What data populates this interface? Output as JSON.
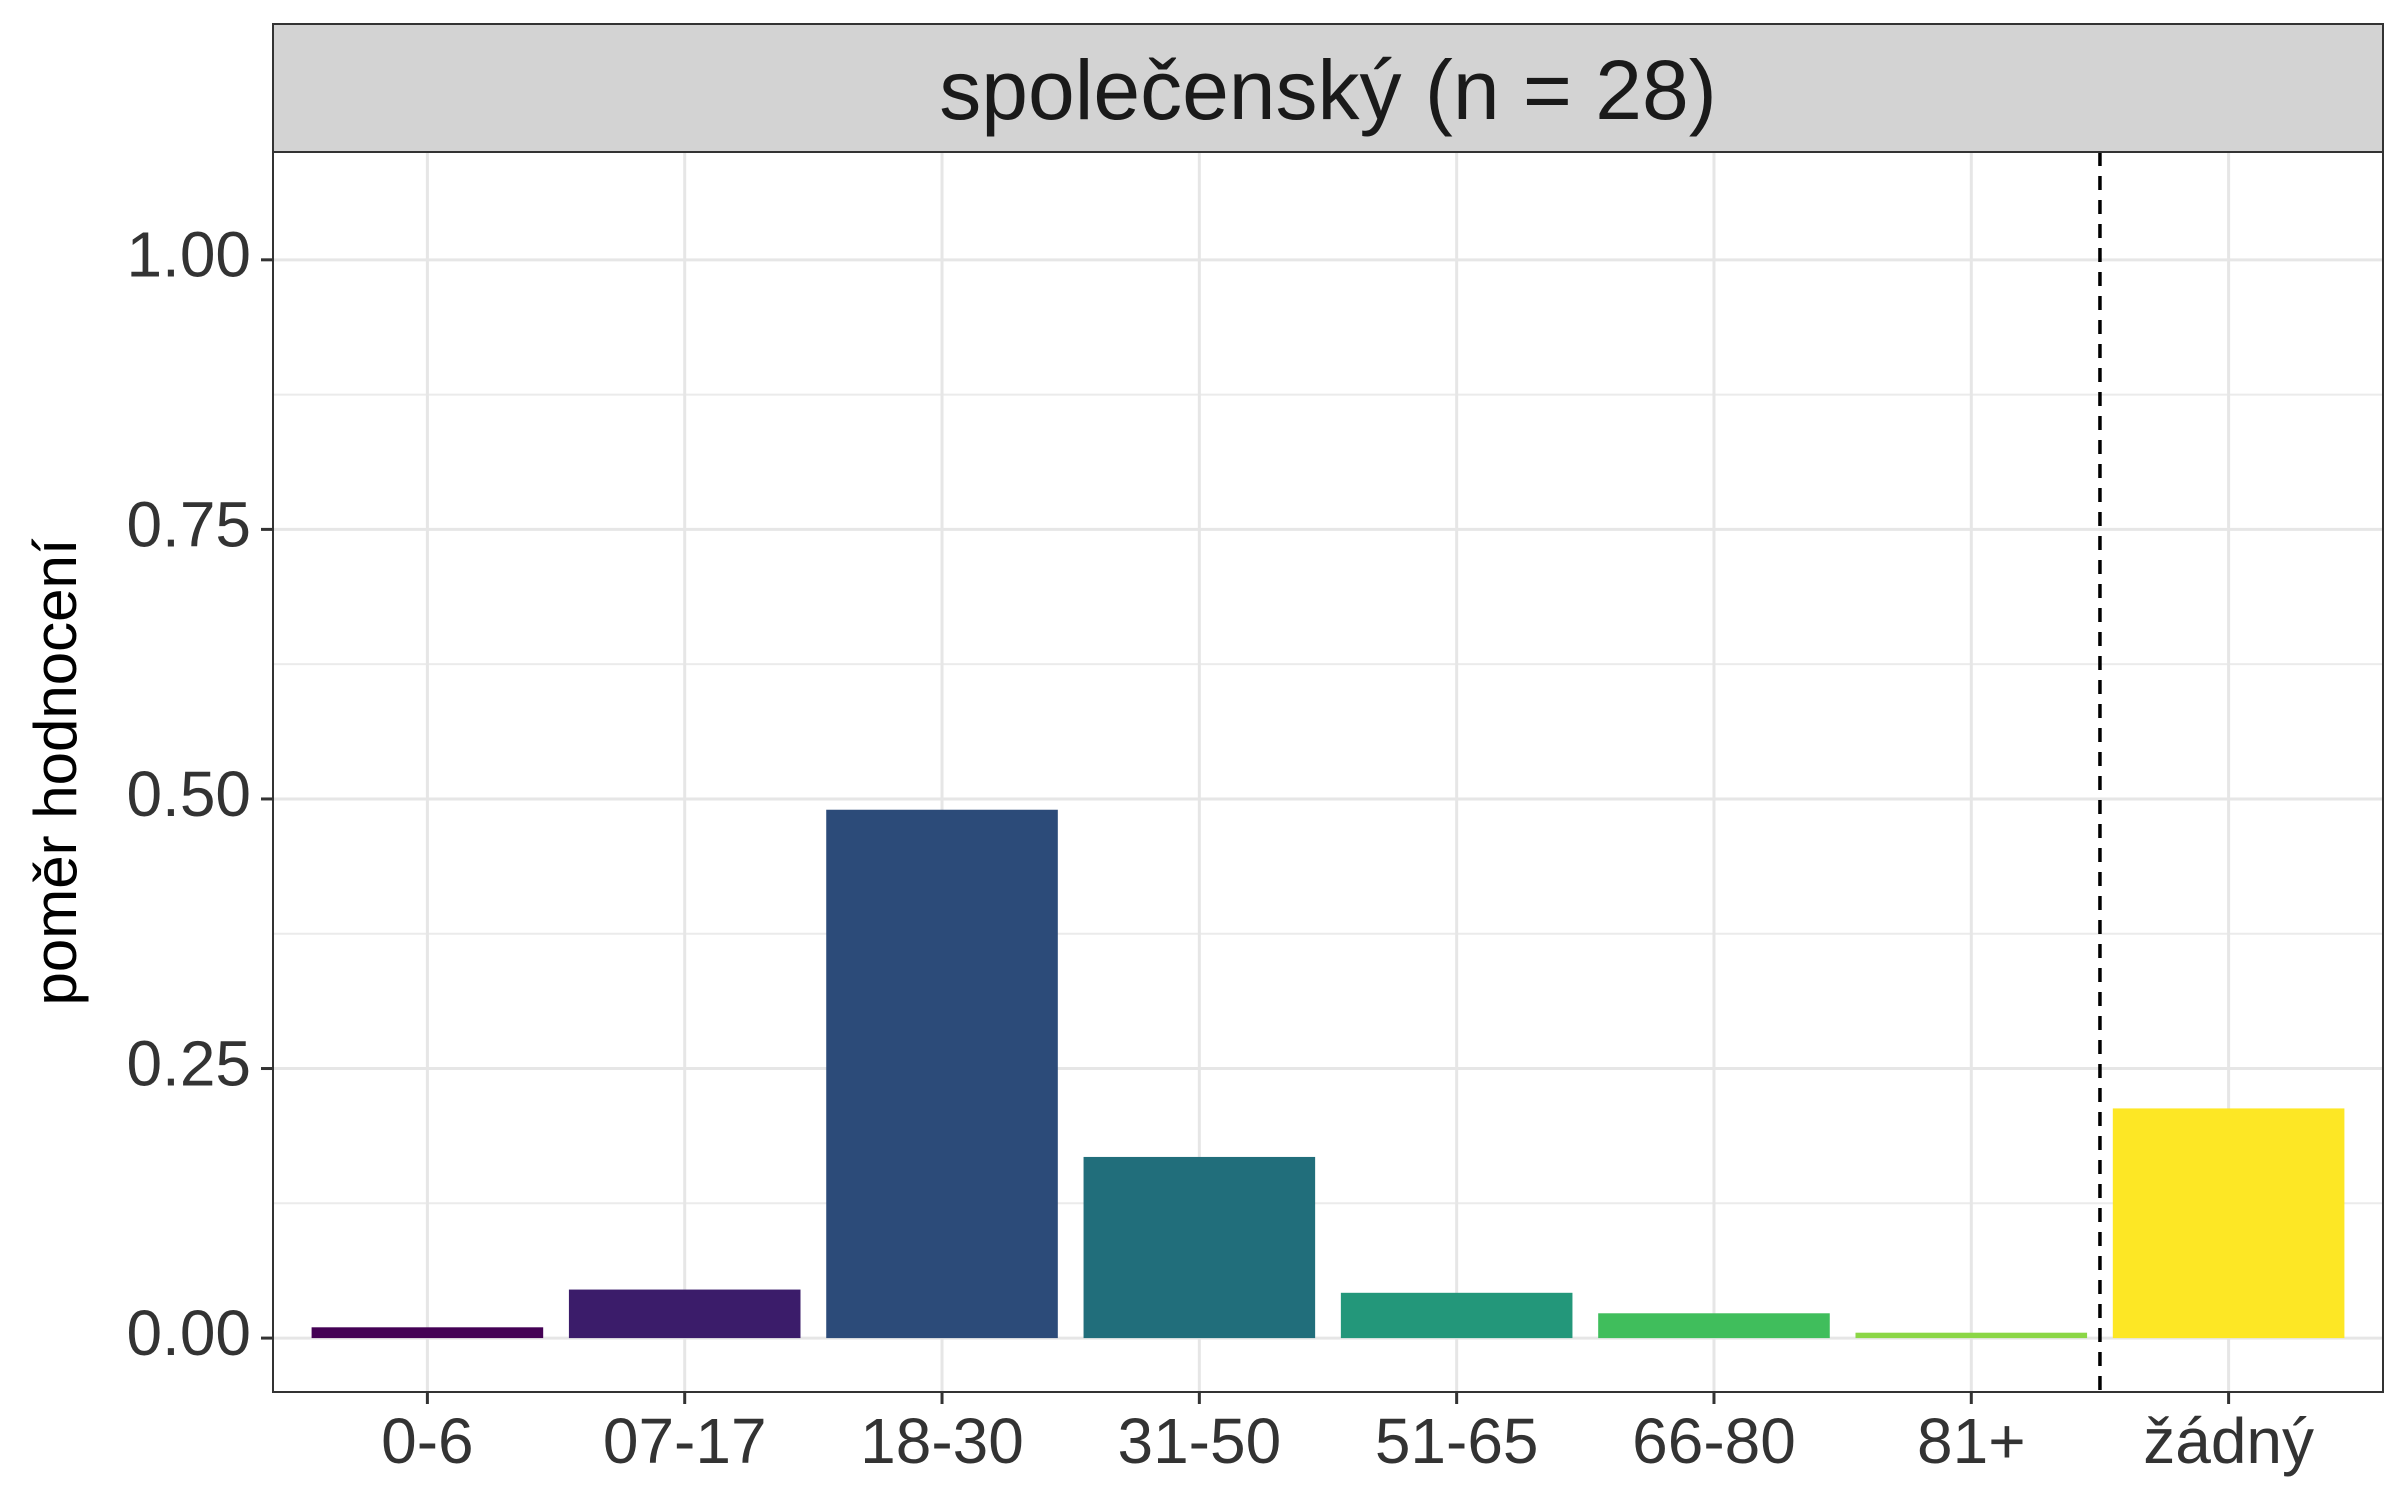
{
  "chart_data": {
    "type": "bar",
    "title": "společenský (n = 28)",
    "xlabel": "",
    "ylabel": "poměr hodnocení",
    "categories": [
      "0-6",
      "07-17",
      "18-30",
      "31-50",
      "51-65",
      "66-80",
      "81+",
      "žádný"
    ],
    "values": [
      0.01,
      0.045,
      0.49,
      0.168,
      0.042,
      0.023,
      0.005,
      0.213
    ],
    "colors": [
      "#440154",
      "#3B1C6A",
      "#2C4B79",
      "#216E7B",
      "#23977A",
      "#40BE5C",
      "#8BD646",
      "#FDE725"
    ],
    "ylim": [
      -0.05,
      1.1
    ],
    "yticks": [
      0.0,
      0.25,
      0.5,
      0.75,
      1.0
    ],
    "ytick_labels": [
      "0.00",
      "0.25",
      "0.50",
      "0.75",
      "1.00"
    ],
    "grid": true,
    "separator_after_category": "81+",
    "separator_style": "dashed",
    "facet_strip_color": "#D3D3D3"
  }
}
